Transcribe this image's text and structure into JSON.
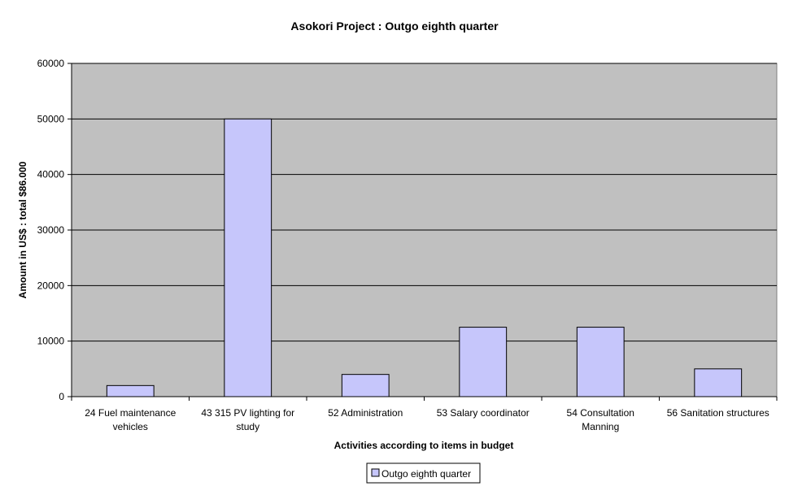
{
  "chart_data": {
    "type": "bar",
    "title": "Asokori Project : Outgo eighth quarter",
    "xlabel": "Activities according to items in budget",
    "ylabel": "Amount in US$ : total $86.000",
    "categories": [
      [
        "24 Fuel maintenance",
        "vehicles"
      ],
      [
        "43 315 PV lighting for",
        "study"
      ],
      [
        "52 Administration"
      ],
      [
        "53 Salary coordinator"
      ],
      [
        "54 Consultation",
        "Manning"
      ],
      [
        "56 Sanitation structures"
      ]
    ],
    "series": [
      {
        "name": "Outgo eighth quarter",
        "values": [
          2000,
          50000,
          4000,
          12500,
          12500,
          5000
        ]
      }
    ],
    "ylim": [
      0,
      60000
    ],
    "yticks": [
      0,
      10000,
      20000,
      30000,
      40000,
      50000,
      60000
    ],
    "grid": true,
    "legend_position": "bottom",
    "colors": {
      "plot_background": "#c0c0c0",
      "bar_fill": "#c6c6fb",
      "bar_stroke": "#000000",
      "grid": "#000000"
    }
  }
}
